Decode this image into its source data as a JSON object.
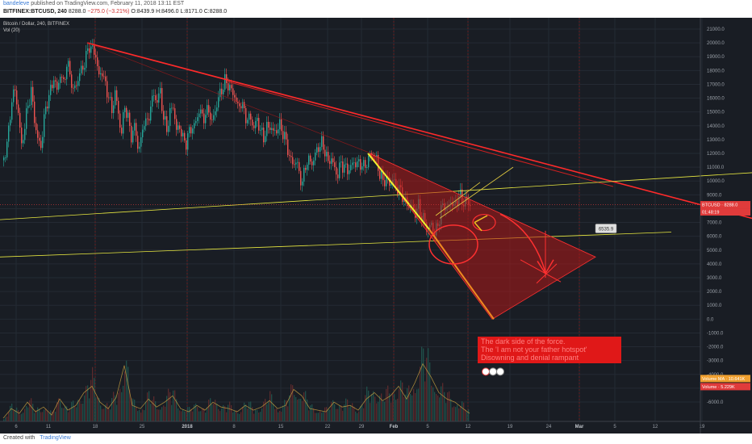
{
  "header": {
    "author": "bandeleve",
    "published": "published on TradingView.com, February 11, 2018 13:11 EST",
    "symbol": "BITFINEX:BTCUSD, 240",
    "last": "8288.0",
    "change": "−275.0 (−3.21%)",
    "ohlc": "O:8439.9 H:8496.0 L:8171.0 C:8288.0"
  },
  "legend": {
    "title": "Bitcoin / Dollar, 240, BITFINEX",
    "vol": "Vol (20)"
  },
  "footer": {
    "created_with": "Created with",
    "brand": "TradingView"
  },
  "annotation": {
    "lines": [
      "The dark side of the force.",
      "The 'I am not your father hotspot'",
      "Disowning and denial rampant"
    ],
    "target_label": "6535.9"
  },
  "price_tags": [
    {
      "label": "BTCUSD · 8288.0",
      "color": "#e03b3b"
    },
    {
      "label": "01:48:19",
      "color": "#e03b3b"
    },
    {
      "label": "Volume MA · 10.641K",
      "color": "#f0a030"
    },
    {
      "label": "Volume · 5.229K",
      "color": "#e03b3b"
    }
  ],
  "colors": {
    "background": "#191d24",
    "bull": "#26a69a",
    "bear": "#ef5350",
    "trend_red": "#ff2a2a",
    "trend_yellow": "#e8e840",
    "grid_red": "#7a1c1c"
  },
  "chart_data": {
    "type": "candlestick",
    "y_ticks": [
      "21000.0",
      "20000.0",
      "19000.0",
      "18000.0",
      "17000.0",
      "16000.0",
      "15000.0",
      "14000.0",
      "13000.0",
      "12000.0",
      "11000.0",
      "10000.0",
      "9000.0",
      "8000.0",
      "7000.0",
      "6000.0",
      "5000.0",
      "4000.0",
      "3000.0",
      "2000.0",
      "1000.0",
      "0.0",
      "-1000.0",
      "-2000.0",
      "-3000.0",
      "-4000.0",
      "-5000.0",
      "-6000.0"
    ],
    "x_ticks": [
      {
        "label": "6",
        "bold": false
      },
      {
        "label": "11",
        "bold": false
      },
      {
        "label": "18",
        "bold": false
      },
      {
        "label": "25",
        "bold": false
      },
      {
        "label": "2018",
        "bold": true
      },
      {
        "label": "8",
        "bold": false
      },
      {
        "label": "15",
        "bold": false
      },
      {
        "label": "22",
        "bold": false
      },
      {
        "label": "29",
        "bold": false
      },
      {
        "label": "Feb",
        "bold": true
      },
      {
        "label": "5",
        "bold": false
      },
      {
        "label": "12",
        "bold": false
      },
      {
        "label": "19",
        "bold": false
      },
      {
        "label": "24",
        "bold": false
      },
      {
        "label": "Mar",
        "bold": true
      },
      {
        "label": "5",
        "bold": false
      },
      {
        "label": "12",
        "bold": false
      },
      {
        "label": "19",
        "bold": false
      }
    ],
    "ylim": [
      -6000,
      21500
    ],
    "price_path": [
      [
        0,
        11500
      ],
      [
        6,
        13500
      ],
      [
        10,
        16000
      ],
      [
        14,
        16500
      ],
      [
        18,
        15000
      ],
      [
        22,
        12500
      ],
      [
        26,
        14000
      ],
      [
        30,
        15500
      ],
      [
        34,
        16500
      ],
      [
        38,
        14500
      ],
      [
        42,
        13000
      ],
      [
        46,
        12500
      ],
      [
        50,
        14500
      ],
      [
        54,
        15800
      ],
      [
        58,
        16500
      ],
      [
        62,
        17500
      ],
      [
        66,
        16500
      ],
      [
        70,
        17800
      ],
      [
        74,
        17000
      ],
      [
        78,
        18500
      ],
      [
        82,
        17800
      ],
      [
        86,
        16500
      ],
      [
        90,
        17000
      ],
      [
        94,
        17800
      ],
      [
        98,
        18200
      ],
      [
        102,
        19000
      ],
      [
        106,
        19800
      ],
      [
        110,
        19500
      ],
      [
        114,
        19100
      ],
      [
        118,
        17500
      ],
      [
        122,
        18000
      ],
      [
        126,
        16800
      ],
      [
        130,
        16200
      ],
      [
        134,
        15000
      ],
      [
        138,
        16500
      ],
      [
        142,
        14800
      ],
      [
        146,
        13500
      ],
      [
        150,
        15500
      ],
      [
        154,
        14500
      ],
      [
        158,
        13200
      ],
      [
        162,
        14000
      ],
      [
        166,
        12500
      ],
      [
        170,
        12800
      ],
      [
        174,
        14500
      ],
      [
        178,
        14100
      ],
      [
        182,
        15500
      ],
      [
        186,
        16200
      ],
      [
        190,
        15800
      ],
      [
        194,
        16500
      ],
      [
        198,
        14500
      ],
      [
        202,
        13800
      ],
      [
        206,
        14900
      ],
      [
        210,
        15500
      ],
      [
        214,
        13600
      ],
      [
        218,
        14000
      ],
      [
        222,
        13000
      ],
      [
        226,
        12800
      ],
      [
        230,
        13600
      ],
      [
        234,
        13900
      ],
      [
        238,
        14200
      ],
      [
        242,
        15200
      ],
      [
        246,
        14600
      ],
      [
        250,
        14800
      ],
      [
        254,
        15200
      ],
      [
        258,
        14200
      ],
      [
        262,
        15100
      ],
      [
        266,
        16000
      ],
      [
        270,
        16600
      ],
      [
        274,
        17200
      ],
      [
        278,
        17000
      ],
      [
        282,
        16500
      ],
      [
        286,
        16200
      ],
      [
        290,
        15300
      ],
      [
        294,
        15700
      ],
      [
        298,
        15000
      ],
      [
        302,
        14400
      ],
      [
        306,
        14600
      ],
      [
        310,
        13800
      ],
      [
        314,
        14500
      ],
      [
        318,
        13600
      ],
      [
        322,
        13200
      ],
      [
        326,
        13800
      ],
      [
        330,
        14000
      ],
      [
        334,
        13500
      ],
      [
        338,
        13700
      ],
      [
        342,
        14000
      ],
      [
        346,
        13500
      ],
      [
        350,
        12800
      ],
      [
        354,
        11800
      ],
      [
        358,
        11200
      ],
      [
        362,
        11500
      ],
      [
        366,
        10600
      ],
      [
        370,
        9800
      ],
      [
        374,
        11200
      ],
      [
        378,
        11500
      ],
      [
        382,
        11300
      ],
      [
        386,
        11900
      ],
      [
        390,
        12500
      ],
      [
        394,
        12700
      ],
      [
        398,
        12200
      ],
      [
        402,
        11300
      ],
      [
        406,
        11700
      ],
      [
        410,
        10800
      ],
      [
        414,
        10500
      ],
      [
        418,
        11300
      ],
      [
        422,
        11000
      ],
      [
        426,
        10800
      ],
      [
        430,
        11000
      ],
      [
        434,
        11400
      ],
      [
        438,
        11200
      ],
      [
        442,
        11300
      ],
      [
        446,
        11000
      ],
      [
        450,
        11300
      ],
      [
        454,
        11900
      ],
      [
        458,
        12000
      ],
      [
        462,
        11500
      ],
      [
        466,
        10500
      ],
      [
        470,
        10000
      ],
      [
        474,
        10200
      ],
      [
        478,
        9800
      ],
      [
        482,
        10100
      ],
      [
        486,
        9600
      ],
      [
        490,
        9400
      ],
      [
        494,
        9000
      ],
      [
        498,
        8400
      ],
      [
        502,
        8300
      ],
      [
        506,
        8100
      ],
      [
        510,
        7700
      ],
      [
        514,
        8200
      ],
      [
        518,
        7400
      ],
      [
        522,
        7000
      ],
      [
        526,
        6400
      ],
      [
        530,
        6900
      ],
      [
        534,
        6200
      ],
      [
        538,
        6800
      ],
      [
        542,
        7900
      ],
      [
        546,
        8300
      ],
      [
        550,
        7900
      ],
      [
        554,
        8600
      ],
      [
        558,
        8100
      ],
      [
        562,
        8700
      ],
      [
        566,
        8900
      ],
      [
        570,
        8400
      ],
      [
        574,
        8600
      ],
      [
        578,
        8288
      ]
    ],
    "volume_path": [
      [
        0,
        2
      ],
      [
        10,
        8
      ],
      [
        20,
        5
      ],
      [
        30,
        12
      ],
      [
        40,
        6
      ],
      [
        50,
        9
      ],
      [
        60,
        4
      ],
      [
        70,
        14
      ],
      [
        80,
        7
      ],
      [
        90,
        10
      ],
      [
        100,
        18
      ],
      [
        110,
        22
      ],
      [
        120,
        12
      ],
      [
        130,
        8
      ],
      [
        140,
        15
      ],
      [
        150,
        35
      ],
      [
        160,
        10
      ],
      [
        170,
        8
      ],
      [
        180,
        14
      ],
      [
        190,
        9
      ],
      [
        200,
        12
      ],
      [
        210,
        16
      ],
      [
        220,
        8
      ],
      [
        230,
        6
      ],
      [
        240,
        10
      ],
      [
        250,
        7
      ],
      [
        260,
        12
      ],
      [
        270,
        9
      ],
      [
        280,
        8
      ],
      [
        290,
        6
      ],
      [
        300,
        10
      ],
      [
        310,
        7
      ],
      [
        320,
        9
      ],
      [
        330,
        13
      ],
      [
        340,
        8
      ],
      [
        350,
        10
      ],
      [
        360,
        20
      ],
      [
        370,
        16
      ],
      [
        380,
        8
      ],
      [
        390,
        7
      ],
      [
        400,
        6
      ],
      [
        410,
        12
      ],
      [
        420,
        9
      ],
      [
        430,
        10
      ],
      [
        440,
        7
      ],
      [
        450,
        14
      ],
      [
        460,
        18
      ],
      [
        470,
        13
      ],
      [
        480,
        16
      ],
      [
        490,
        22
      ],
      [
        500,
        14
      ],
      [
        510,
        24
      ],
      [
        520,
        36
      ],
      [
        530,
        28
      ],
      [
        540,
        18
      ],
      [
        550,
        14
      ],
      [
        560,
        12
      ],
      [
        570,
        8
      ],
      [
        578,
        5
      ]
    ]
  }
}
